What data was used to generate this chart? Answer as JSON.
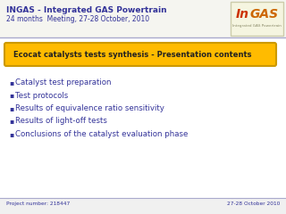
{
  "title_line1_bold": "INGAS - Integrated GAS Powertrain",
  "title_line2": "24 months  Meeting, 27-28 October, 2010",
  "slide_bg": "#f0f0f0",
  "header_bg": "#f5f5f0",
  "content_bg": "#ffffff",
  "header_border_color": "#aaaacc",
  "yellow_box_text": "Ecocat catalysts tests synthesis - Presentation contents",
  "yellow_box_bg": "#FFBB00",
  "yellow_box_border": "#cc9900",
  "bullet_color": "#333399",
  "bullet_items": [
    "Catalyst test preparation",
    "Test protocols",
    "Results of equivalence ratio sensitivity",
    "Results of light-off tests",
    "Conclusions of the catalyst evaluation phase"
  ],
  "footer_left": "Project number: 218447",
  "footer_right": "27-28 October 2010",
  "footer_color": "#333399",
  "title_color": "#333399",
  "logo_in_color": "#cc3300",
  "logo_gas_color": "#cc6600",
  "logo_bg": "#f5f5e0",
  "logo_border": "#ccccaa"
}
